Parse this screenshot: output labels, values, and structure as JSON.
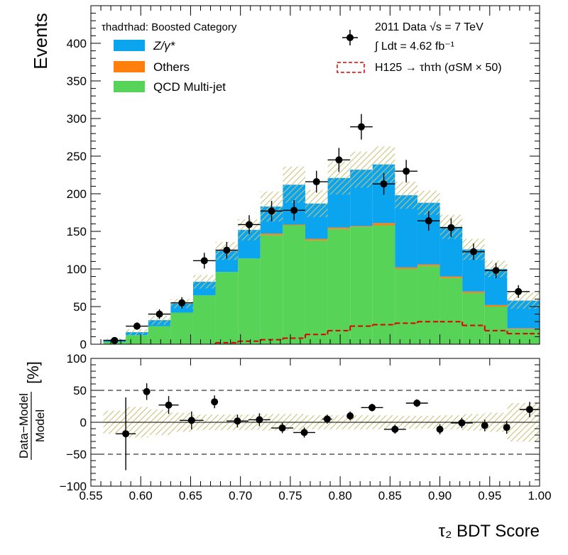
{
  "chart_data": {
    "type": "bar",
    "x_axis_label": "τ₂ BDT Score",
    "top_ylabel": "Events",
    "ratio_ylabel_num": "Data−Model",
    "ratio_ylabel_den": "Model",
    "ratio_ylabel_unit": "[%]",
    "xlim": [
      0.55,
      1.0
    ],
    "top_ylim": [
      0,
      450
    ],
    "ratio_ylim": [
      -100,
      100
    ],
    "x_ticks": [
      "0.55",
      "0.60",
      "0.65",
      "0.70",
      "0.75",
      "0.80",
      "0.85",
      "0.90",
      "0.95",
      "1.00"
    ],
    "top_y_ticks": [
      "0",
      "50",
      "100",
      "150",
      "200",
      "250",
      "300",
      "350",
      "400"
    ],
    "ratio_y_ticks": [
      "−100",
      "−50",
      "0",
      "50",
      "100"
    ],
    "ratio_dashed_lines": [
      50,
      -50
    ],
    "category_label": "τhadτhad: Boosted Category",
    "lumi_label_1": "2011 Data √s = 7 TeV",
    "lumi_label_2": "∫ Ldt = 4.62 fb⁻¹",
    "legend": {
      "zgamma": "Z/γ*",
      "others": "Others",
      "qcd": "QCD Multi-jet",
      "signal": "H125 → τhτh (σSM × 50)"
    },
    "colors": {
      "zgamma": "#0aa5ee",
      "others": "#ff7f0e",
      "qcd": "#57d357",
      "signal": "#dd0000",
      "uncertainty": "#c9c27a",
      "data": "#000000"
    },
    "bins": [
      {
        "lo": 0.5625,
        "hi": 0.585,
        "qcd": 3,
        "others": 0,
        "z": 3,
        "data": 5,
        "data_err": 2.5,
        "unc": 2,
        "signal": 0
      },
      {
        "lo": 0.585,
        "hi": 0.6075,
        "qcd": 12,
        "others": 0,
        "z": 4,
        "data": 24,
        "data_err": 5,
        "unc": 4,
        "signal": 0
      },
      {
        "lo": 0.6075,
        "hi": 0.63,
        "qcd": 24,
        "others": 0,
        "z": 8,
        "data": 40,
        "data_err": 6.5,
        "unc": 6,
        "signal": 0
      },
      {
        "lo": 0.63,
        "hi": 0.6525,
        "qcd": 42,
        "others": 0,
        "z": 12,
        "data": 55,
        "data_err": 7.5,
        "unc": 6,
        "signal": 0
      },
      {
        "lo": 0.6525,
        "hi": 0.675,
        "qcd": 65,
        "others": 0,
        "z": 18,
        "data": 111,
        "data_err": 10.5,
        "unc": 9,
        "signal": 0
      },
      {
        "lo": 0.675,
        "hi": 0.6975,
        "qcd": 96,
        "others": 0,
        "z": 28,
        "data": 125,
        "data_err": 11,
        "unc": 12,
        "signal": 2
      },
      {
        "lo": 0.6975,
        "hi": 0.72,
        "qcd": 114,
        "others": 0,
        "z": 38,
        "data": 159,
        "data_err": 12.5,
        "unc": 14,
        "signal": 4
      },
      {
        "lo": 0.72,
        "hi": 0.7425,
        "qcd": 145,
        "others": 2,
        "z": 36,
        "data": 177,
        "data_err": 13.5,
        "unc": 20,
        "signal": 6
      },
      {
        "lo": 0.7425,
        "hi": 0.765,
        "qcd": 158,
        "others": 1,
        "z": 53,
        "data": 178,
        "data_err": 13.5,
        "unc": 24,
        "signal": 8
      },
      {
        "lo": 0.765,
        "hi": 0.7875,
        "qcd": 138,
        "others": 2,
        "z": 47,
        "data": 216,
        "data_err": 14.5,
        "unc": 18,
        "signal": 13
      },
      {
        "lo": 0.7875,
        "hi": 0.81,
        "qcd": 153,
        "others": 2,
        "z": 66,
        "data": 245,
        "data_err": 16,
        "unc": 22,
        "signal": 18
      },
      {
        "lo": 0.81,
        "hi": 0.8325,
        "qcd": 156,
        "others": 1,
        "z": 75,
        "data": 289,
        "data_err": 17,
        "unc": 24,
        "signal": 24
      },
      {
        "lo": 0.8325,
        "hi": 0.855,
        "qcd": 158,
        "others": 3,
        "z": 78,
        "data": 213,
        "data_err": 14.5,
        "unc": 24,
        "signal": 26
      },
      {
        "lo": 0.855,
        "hi": 0.8775,
        "qcd": 100,
        "others": 2,
        "z": 96,
        "data": 230,
        "data_err": 15,
        "unc": 18,
        "signal": 28
      },
      {
        "lo": 0.8775,
        "hi": 0.9,
        "qcd": 104,
        "others": 2,
        "z": 82,
        "data": 164,
        "data_err": 13,
        "unc": 16,
        "signal": 30
      },
      {
        "lo": 0.9,
        "hi": 0.9225,
        "qcd": 88,
        "others": 2,
        "z": 66,
        "data": 155,
        "data_err": 12.5,
        "unc": 16,
        "signal": 30
      },
      {
        "lo": 0.9225,
        "hi": 0.945,
        "qcd": 68,
        "others": 2,
        "z": 56,
        "data": 123,
        "data_err": 11,
        "unc": 14,
        "signal": 25
      },
      {
        "lo": 0.945,
        "hi": 0.9675,
        "qcd": 50,
        "others": 2,
        "z": 48,
        "data": 98,
        "data_err": 10,
        "unc": 11,
        "signal": 18
      },
      {
        "lo": 0.9675,
        "hi": 0.99,
        "qcd": 20,
        "others": 1,
        "z": 37,
        "data": 70,
        "data_err": 8.5,
        "unc": 11,
        "signal": 14
      },
      {
        "lo": 0.99,
        "hi": 1.0,
        "qcd": 20,
        "others": 1,
        "z": 37,
        "data": null,
        "data_err": 0,
        "unc": 11,
        "signal": 14
      }
    ],
    "ratio_points": [
      {
        "x": 0.585,
        "y": -18,
        "err": 57,
        "xerr": 0.01,
        "band": 18
      },
      {
        "x": 0.606,
        "y": 48,
        "err": 13,
        "xerr": 0.0,
        "band": 24
      },
      {
        "x": 0.628,
        "y": 27,
        "err": 14,
        "xerr": 0.01,
        "band": 20
      },
      {
        "x": 0.651,
        "y": 3,
        "err": 14,
        "xerr": 0.012,
        "band": 15
      },
      {
        "x": 0.674,
        "y": 32,
        "err": 10,
        "xerr": 0.0,
        "band": 12
      },
      {
        "x": 0.697,
        "y": 2,
        "err": 10,
        "xerr": 0.011,
        "band": 12
      },
      {
        "x": 0.719,
        "y": 4,
        "err": 10,
        "xerr": 0.011,
        "band": 12
      },
      {
        "x": 0.742,
        "y": -9,
        "err": 8,
        "xerr": 0.011,
        "band": 13
      },
      {
        "x": 0.764,
        "y": -16,
        "err": 8,
        "xerr": 0.011,
        "band": 13
      },
      {
        "x": 0.787,
        "y": 5,
        "err": 7,
        "xerr": 0.005,
        "band": 11
      },
      {
        "x": 0.81,
        "y": 10,
        "err": 7,
        "xerr": 0.0,
        "band": 11
      },
      {
        "x": 0.832,
        "y": 23,
        "err": 6,
        "xerr": 0.011,
        "band": 11
      },
      {
        "x": 0.855,
        "y": -11,
        "err": 7,
        "xerr": 0.011,
        "band": 11
      },
      {
        "x": 0.877,
        "y": 30,
        "err": 6,
        "xerr": 0.011,
        "band": 10
      },
      {
        "x": 0.9,
        "y": -11,
        "err": 8,
        "xerr": 0.0,
        "band": 10
      },
      {
        "x": 0.922,
        "y": -1,
        "err": 8,
        "xerr": 0.011,
        "band": 11
      },
      {
        "x": 0.945,
        "y": -5,
        "err": 9,
        "xerr": 0.0,
        "band": 13
      },
      {
        "x": 0.967,
        "y": -8,
        "err": 10,
        "xerr": 0.0,
        "band": 15
      },
      {
        "x": 0.99,
        "y": 20,
        "err": 12,
        "xerr": 0.01,
        "band": 30
      }
    ]
  }
}
